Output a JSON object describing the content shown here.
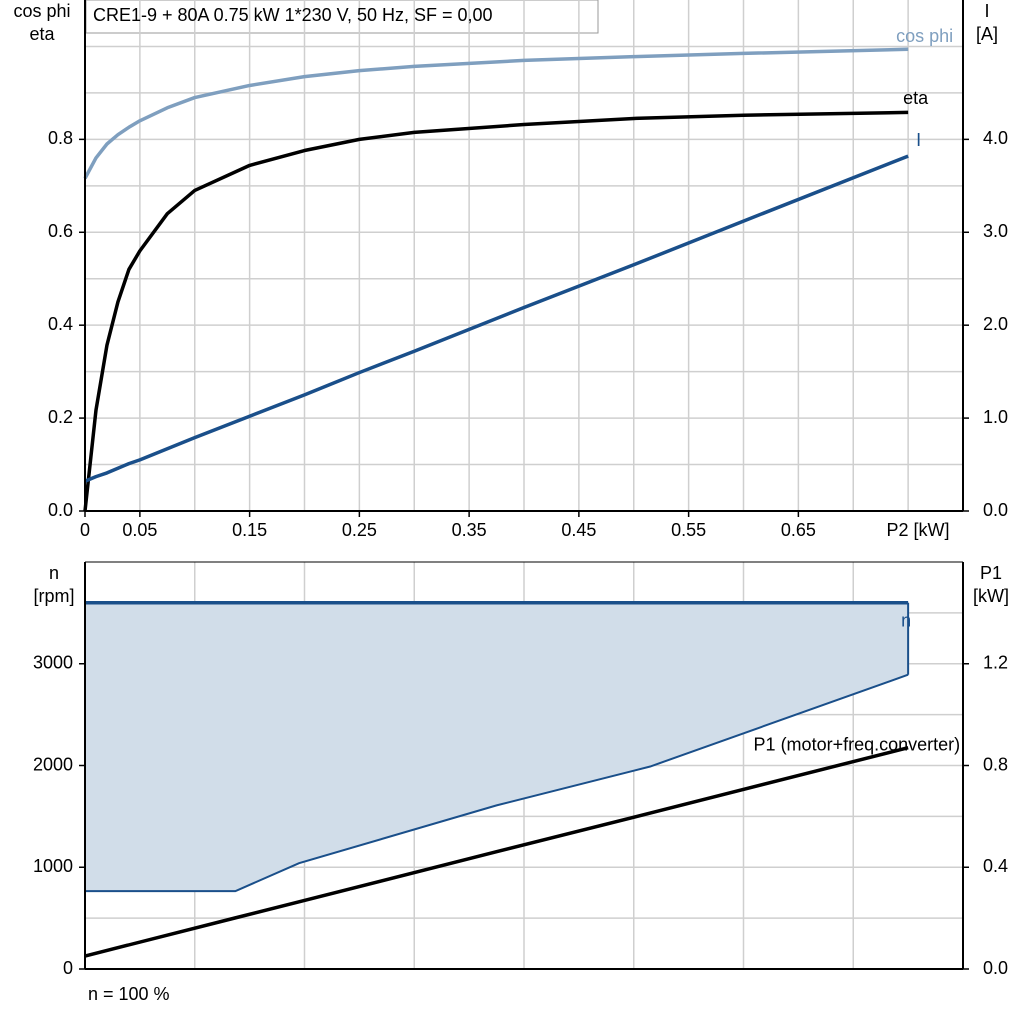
{
  "chart_data": [
    {
      "type": "line",
      "title": "CRE1-9 + 80A   0.75 kW   1*230 V, 50 Hz, SF = 0,00",
      "ylabel": [
        "cos phi",
        "eta"
      ],
      "y2label": [
        "I",
        "[A]"
      ],
      "xlabel": "P2 [kW]",
      "x": [
        0,
        0.01,
        0.02,
        0.03,
        0.04,
        0.05,
        0.075,
        0.1,
        0.15,
        0.2,
        0.25,
        0.3,
        0.4,
        0.5,
        0.6,
        0.75
      ],
      "series": [
        {
          "name": "cos phi",
          "color": "#7f9fbf",
          "values": [
            0.716,
            0.76,
            0.79,
            0.81,
            0.826,
            0.84,
            0.868,
            0.89,
            0.916,
            0.935,
            0.948,
            0.957,
            0.97,
            0.978,
            0.985,
            0.994
          ]
        },
        {
          "name": "eta",
          "color": "#000000",
          "values": [
            0,
            0.217,
            0.357,
            0.45,
            0.52,
            0.56,
            0.64,
            0.69,
            0.744,
            0.776,
            0.8,
            0.815,
            0.832,
            0.845,
            0.852,
            0.858
          ]
        },
        {
          "name": "I",
          "color": "#1a4f8a",
          "axis": "y2",
          "values": [
            0.32,
            0.37,
            0.41,
            0.46,
            0.51,
            0.55,
            0.67,
            0.79,
            1.02,
            1.25,
            1.49,
            1.72,
            2.19,
            2.65,
            3.12,
            3.82
          ]
        }
      ],
      "xlim": [
        0,
        0.8
      ],
      "xticks": [
        0,
        0.05,
        0.15,
        0.25,
        0.35,
        0.45,
        0.55,
        0.65
      ],
      "xgrid": [
        0.05,
        0.1,
        0.15,
        0.2,
        0.25,
        0.3,
        0.35,
        0.4,
        0.45,
        0.5,
        0.55,
        0.6,
        0.65,
        0.7,
        0.75
      ],
      "ylim": [
        0,
        1.1
      ],
      "yticks": [
        {
          "value": 0,
          "label": "0.0"
        },
        0.2,
        0.4,
        0.6,
        0.8
      ],
      "ygrid": [
        0.1,
        0.2,
        0.3,
        0.4,
        0.5,
        0.6,
        0.7,
        0.8,
        0.9,
        1.0
      ],
      "y2lim": [
        0,
        5.5
      ],
      "y2ticks": [
        {
          "value": 0,
          "label": "0.0"
        },
        {
          "value": 1,
          "label": "1.0"
        },
        {
          "value": 2,
          "label": "2.0"
        },
        {
          "value": 3,
          "label": "3.0"
        },
        {
          "value": 4,
          "label": "4.0"
        }
      ],
      "grid": true
    },
    {
      "type": "line",
      "ylabel": [
        "n",
        "[rpm]"
      ],
      "y2label": [
        "P1",
        "[kW]"
      ],
      "note": "n = 100 %",
      "x": [
        0,
        0.137,
        0.195,
        0.375,
        0.515,
        0.75
      ],
      "series": [
        {
          "name": "n",
          "color": "#1a4f8a",
          "fill": "#d1dde9",
          "values": [
            3600,
            3600,
            3600,
            3600,
            3600,
            3600
          ],
          "lower": [
            765,
            765,
            1040,
            1608,
            1990,
            2892
          ]
        },
        {
          "name": "P1 (motor+freq.converter)",
          "color": "#000000",
          "axis": "y2",
          "values": [
            0.051,
            0.201,
            0.264,
            0.461,
            0.613,
            0.87
          ]
        }
      ],
      "xlim": [
        0,
        0.8
      ],
      "xgrid": [
        0.1,
        0.2,
        0.3,
        0.4,
        0.5,
        0.6,
        0.7
      ],
      "ylim": [
        0,
        4000
      ],
      "yticks": [
        0,
        1000,
        2000,
        3000
      ],
      "ygrid": [
        500,
        1000,
        1500,
        2000,
        2500,
        3000,
        3500
      ],
      "y2lim": [
        0,
        1.6
      ],
      "y2ticks": [
        {
          "value": 0,
          "label": "0.0"
        },
        0.4,
        0.8,
        1.2
      ],
      "grid": true
    }
  ]
}
